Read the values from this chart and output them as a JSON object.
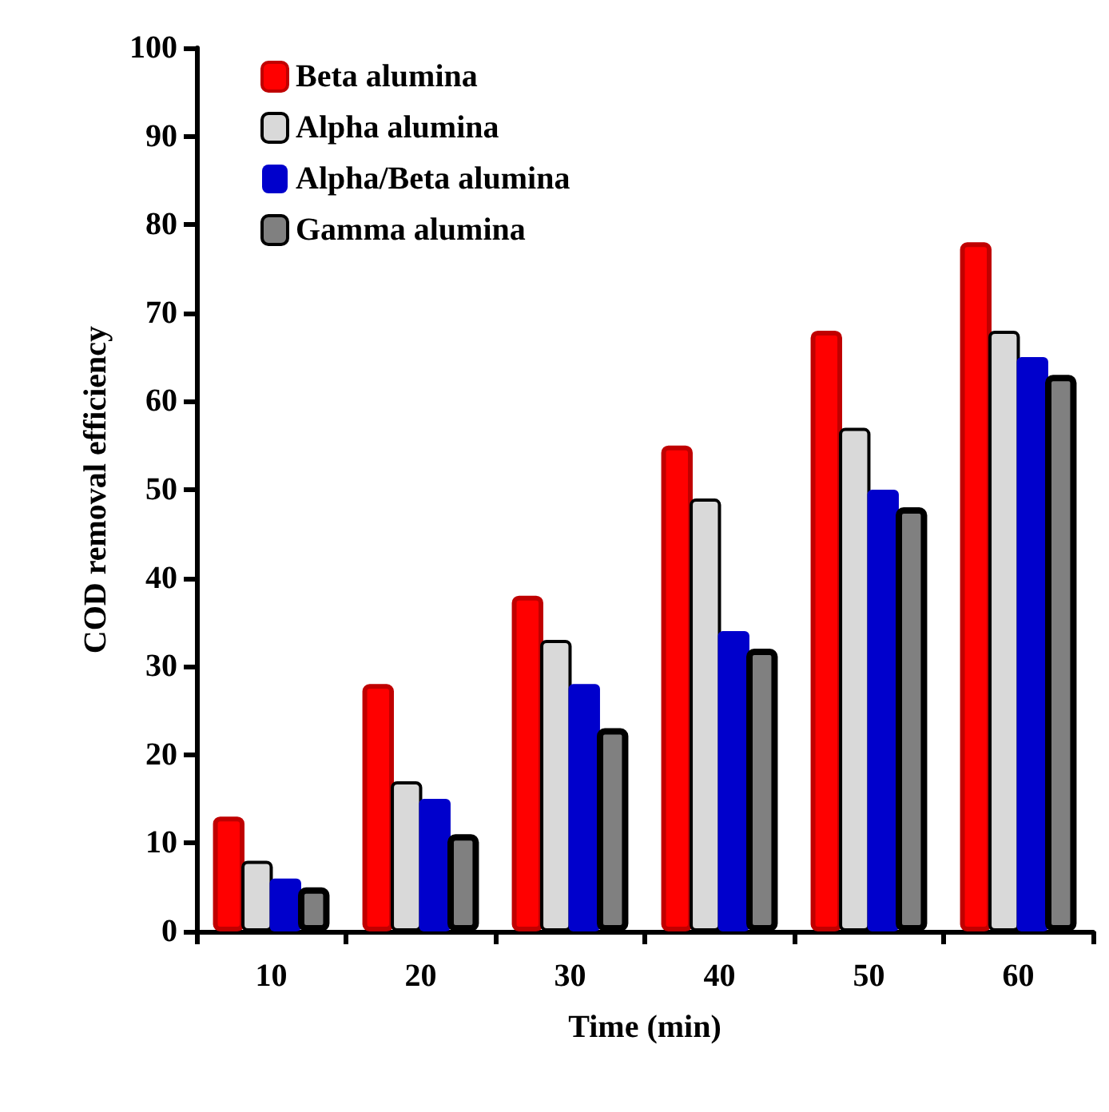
{
  "chart_data": {
    "type": "bar",
    "xlabel": "Time (min)",
    "ylabel": "COD removal efficiency",
    "categories": [
      "10",
      "20",
      "30",
      "40",
      "50",
      "60"
    ],
    "series": [
      {
        "name": "Beta alumina",
        "color": "#ff0000",
        "values": [
          13,
          28,
          38,
          55,
          68,
          78
        ]
      },
      {
        "name": "Alpha alumina",
        "color": "#d9d9d9",
        "values": [
          8,
          17,
          33,
          49,
          57,
          68
        ]
      },
      {
        "name": "Alpha/Beta alumina",
        "color": "#0000cc",
        "values": [
          6,
          15,
          28,
          34,
          50,
          65
        ]
      },
      {
        "name": "Gamma alumina",
        "color": "#808080",
        "values": [
          5,
          11,
          23,
          32,
          48,
          63
        ]
      }
    ],
    "ylim": [
      0,
      100
    ],
    "yticks": [
      0,
      10,
      20,
      30,
      40,
      50,
      60,
      70,
      80,
      90,
      100
    ],
    "grid": false,
    "legend": "top left"
  }
}
